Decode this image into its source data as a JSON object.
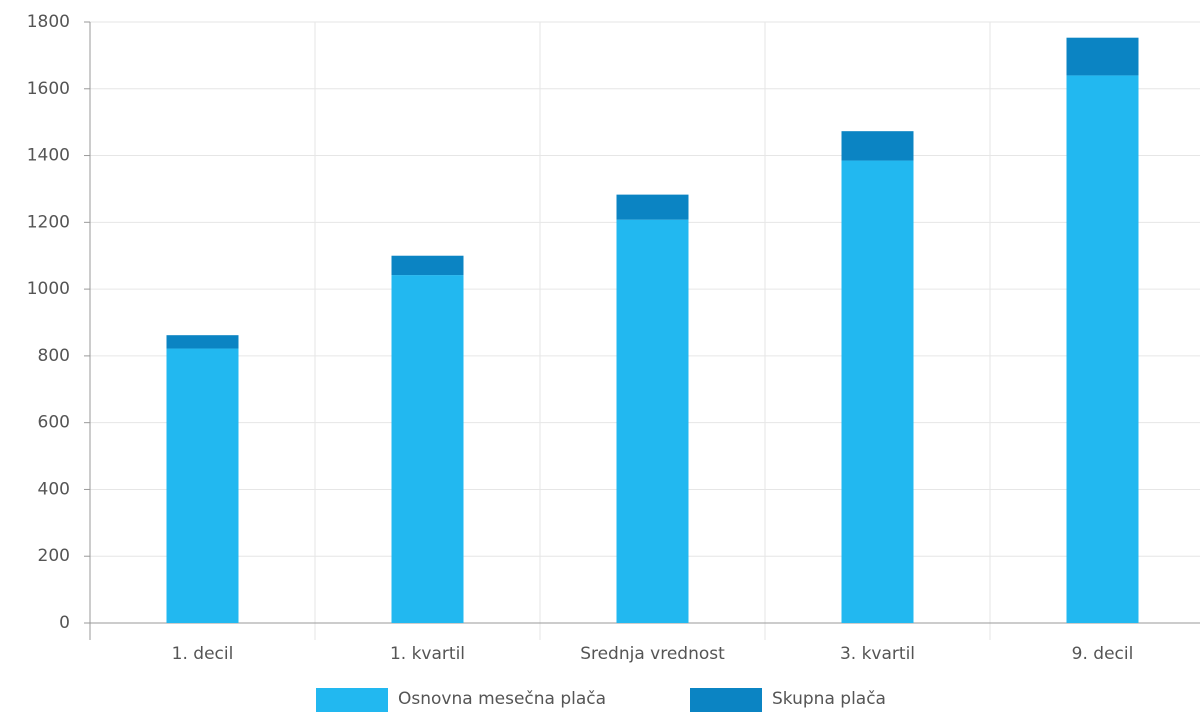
{
  "chart_data": {
    "type": "stacked_bar",
    "categories": [
      "1. decil",
      "1. kvartil",
      "Srednja vrednost",
      "3. kvartil",
      "9. decil"
    ],
    "series": [
      {
        "name": "Osnovna mesečna plača",
        "color": "#22b8f0",
        "values": [
          822,
          1042,
          1208,
          1385,
          1640
        ]
      },
      {
        "name": "Skupna plača",
        "color": "#0b84c3",
        "values": [
          40,
          58,
          75,
          88,
          113
        ]
      }
    ],
    "ylim": [
      0,
      1800
    ],
    "yticks": [
      0,
      200,
      400,
      600,
      800,
      1000,
      1200,
      1400,
      1600,
      1800
    ],
    "grid": true
  }
}
